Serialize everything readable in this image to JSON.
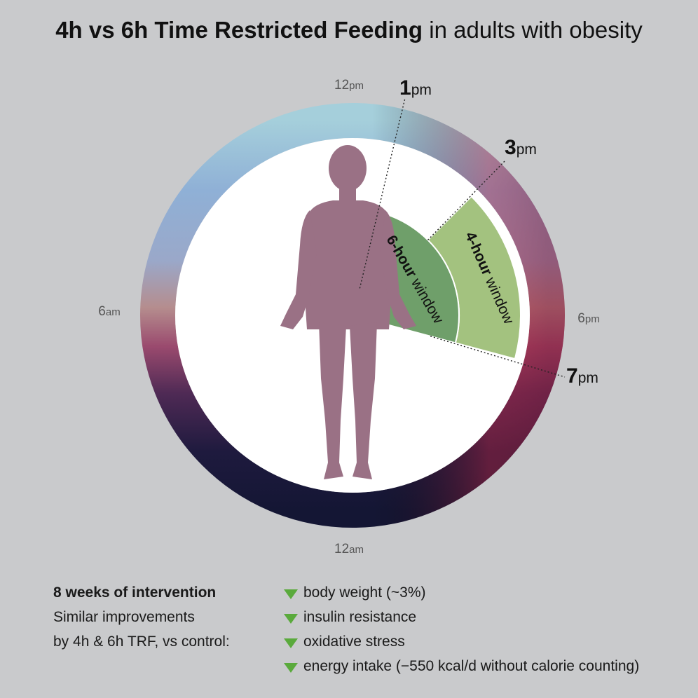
{
  "title": {
    "bold": "4h vs 6h Time Restricted Feeding",
    "rest": "in adults with obesity"
  },
  "clock": {
    "noon": {
      "num": "12",
      "suffix": "pm"
    },
    "midnight": {
      "num": "12",
      "suffix": "am"
    },
    "six_am": {
      "num": "6",
      "suffix": "am"
    },
    "six_pm": {
      "num": "6",
      "suffix": "pm"
    },
    "one_pm": {
      "num": "1",
      "suffix": "pm"
    },
    "three_pm": {
      "num": "3",
      "suffix": "pm"
    },
    "seven_pm": {
      "num": "7",
      "suffix": "pm"
    }
  },
  "windows": {
    "six_hour": {
      "bold": "6-hour",
      "rest": " window",
      "start_hour": 13,
      "end_hour": 19
    },
    "four_hour": {
      "bold": "4-hour",
      "rest": " window",
      "start_hour": 15,
      "end_hour": 19
    }
  },
  "colors": {
    "background": "#c9cacc",
    "six_hour_fill": "#6f9f6a",
    "four_hour_fill": "#a3c27f",
    "figure": "#9a7185",
    "arrow_down": "#5aaa3c"
  },
  "figure_icon": "human-silhouette-icon",
  "summary": {
    "heading": "8 weeks of intervention",
    "line1": "Similar improvements",
    "line2": "by 4h & 6h TRF, vs control:"
  },
  "outcomes": [
    "body weight (~3%)",
    "insulin resistance",
    "oxidative stress",
    "energy intake (−550 kcal/d without calorie counting)"
  ],
  "outcome_icon": "down-arrow-icon"
}
